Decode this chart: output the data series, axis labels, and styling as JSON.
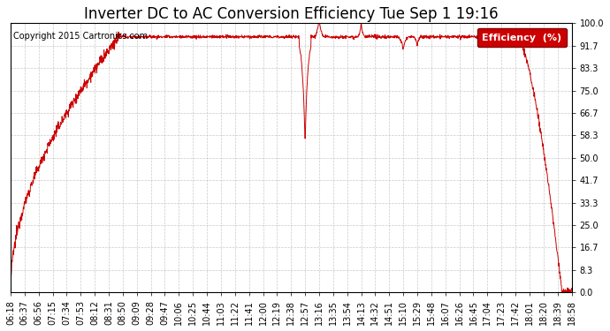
{
  "title": "Inverter DC to AC Conversion Efficiency Tue Sep 1 19:16",
  "copyright": "Copyright 2015 Cartronics.com",
  "legend_label": "Efficiency  (%)",
  "legend_bg": "#cc0000",
  "legend_fg": "#ffffff",
  "line_color": "#cc0000",
  "bg_color": "#ffffff",
  "plot_bg": "#ffffff",
  "grid_color": "#bbbbbb",
  "ylim": [
    0.0,
    100.0
  ],
  "yticks": [
    0.0,
    8.3,
    16.7,
    25.0,
    33.3,
    41.7,
    50.0,
    58.3,
    66.7,
    75.0,
    83.3,
    91.7,
    100.0
  ],
  "xtick_labels": [
    "06:18",
    "06:37",
    "06:56",
    "07:15",
    "07:34",
    "07:53",
    "08:12",
    "08:31",
    "08:50",
    "09:09",
    "09:28",
    "09:47",
    "10:06",
    "10:25",
    "10:44",
    "11:03",
    "11:22",
    "11:41",
    "12:00",
    "12:19",
    "12:38",
    "12:57",
    "13:16",
    "13:35",
    "13:54",
    "14:13",
    "14:32",
    "14:51",
    "15:10",
    "15:29",
    "15:48",
    "16:07",
    "16:26",
    "16:45",
    "17:04",
    "17:23",
    "17:42",
    "18:01",
    "18:20",
    "18:39",
    "18:58"
  ],
  "title_fontsize": 12,
  "copyright_fontsize": 7,
  "tick_fontsize": 7,
  "legend_fontsize": 8,
  "rise_start": "06:18",
  "rise_end": "08:45",
  "plateau_level": 95.0,
  "plateau_end": "17:45",
  "drop_end": "18:45",
  "tail_end": "18:58"
}
